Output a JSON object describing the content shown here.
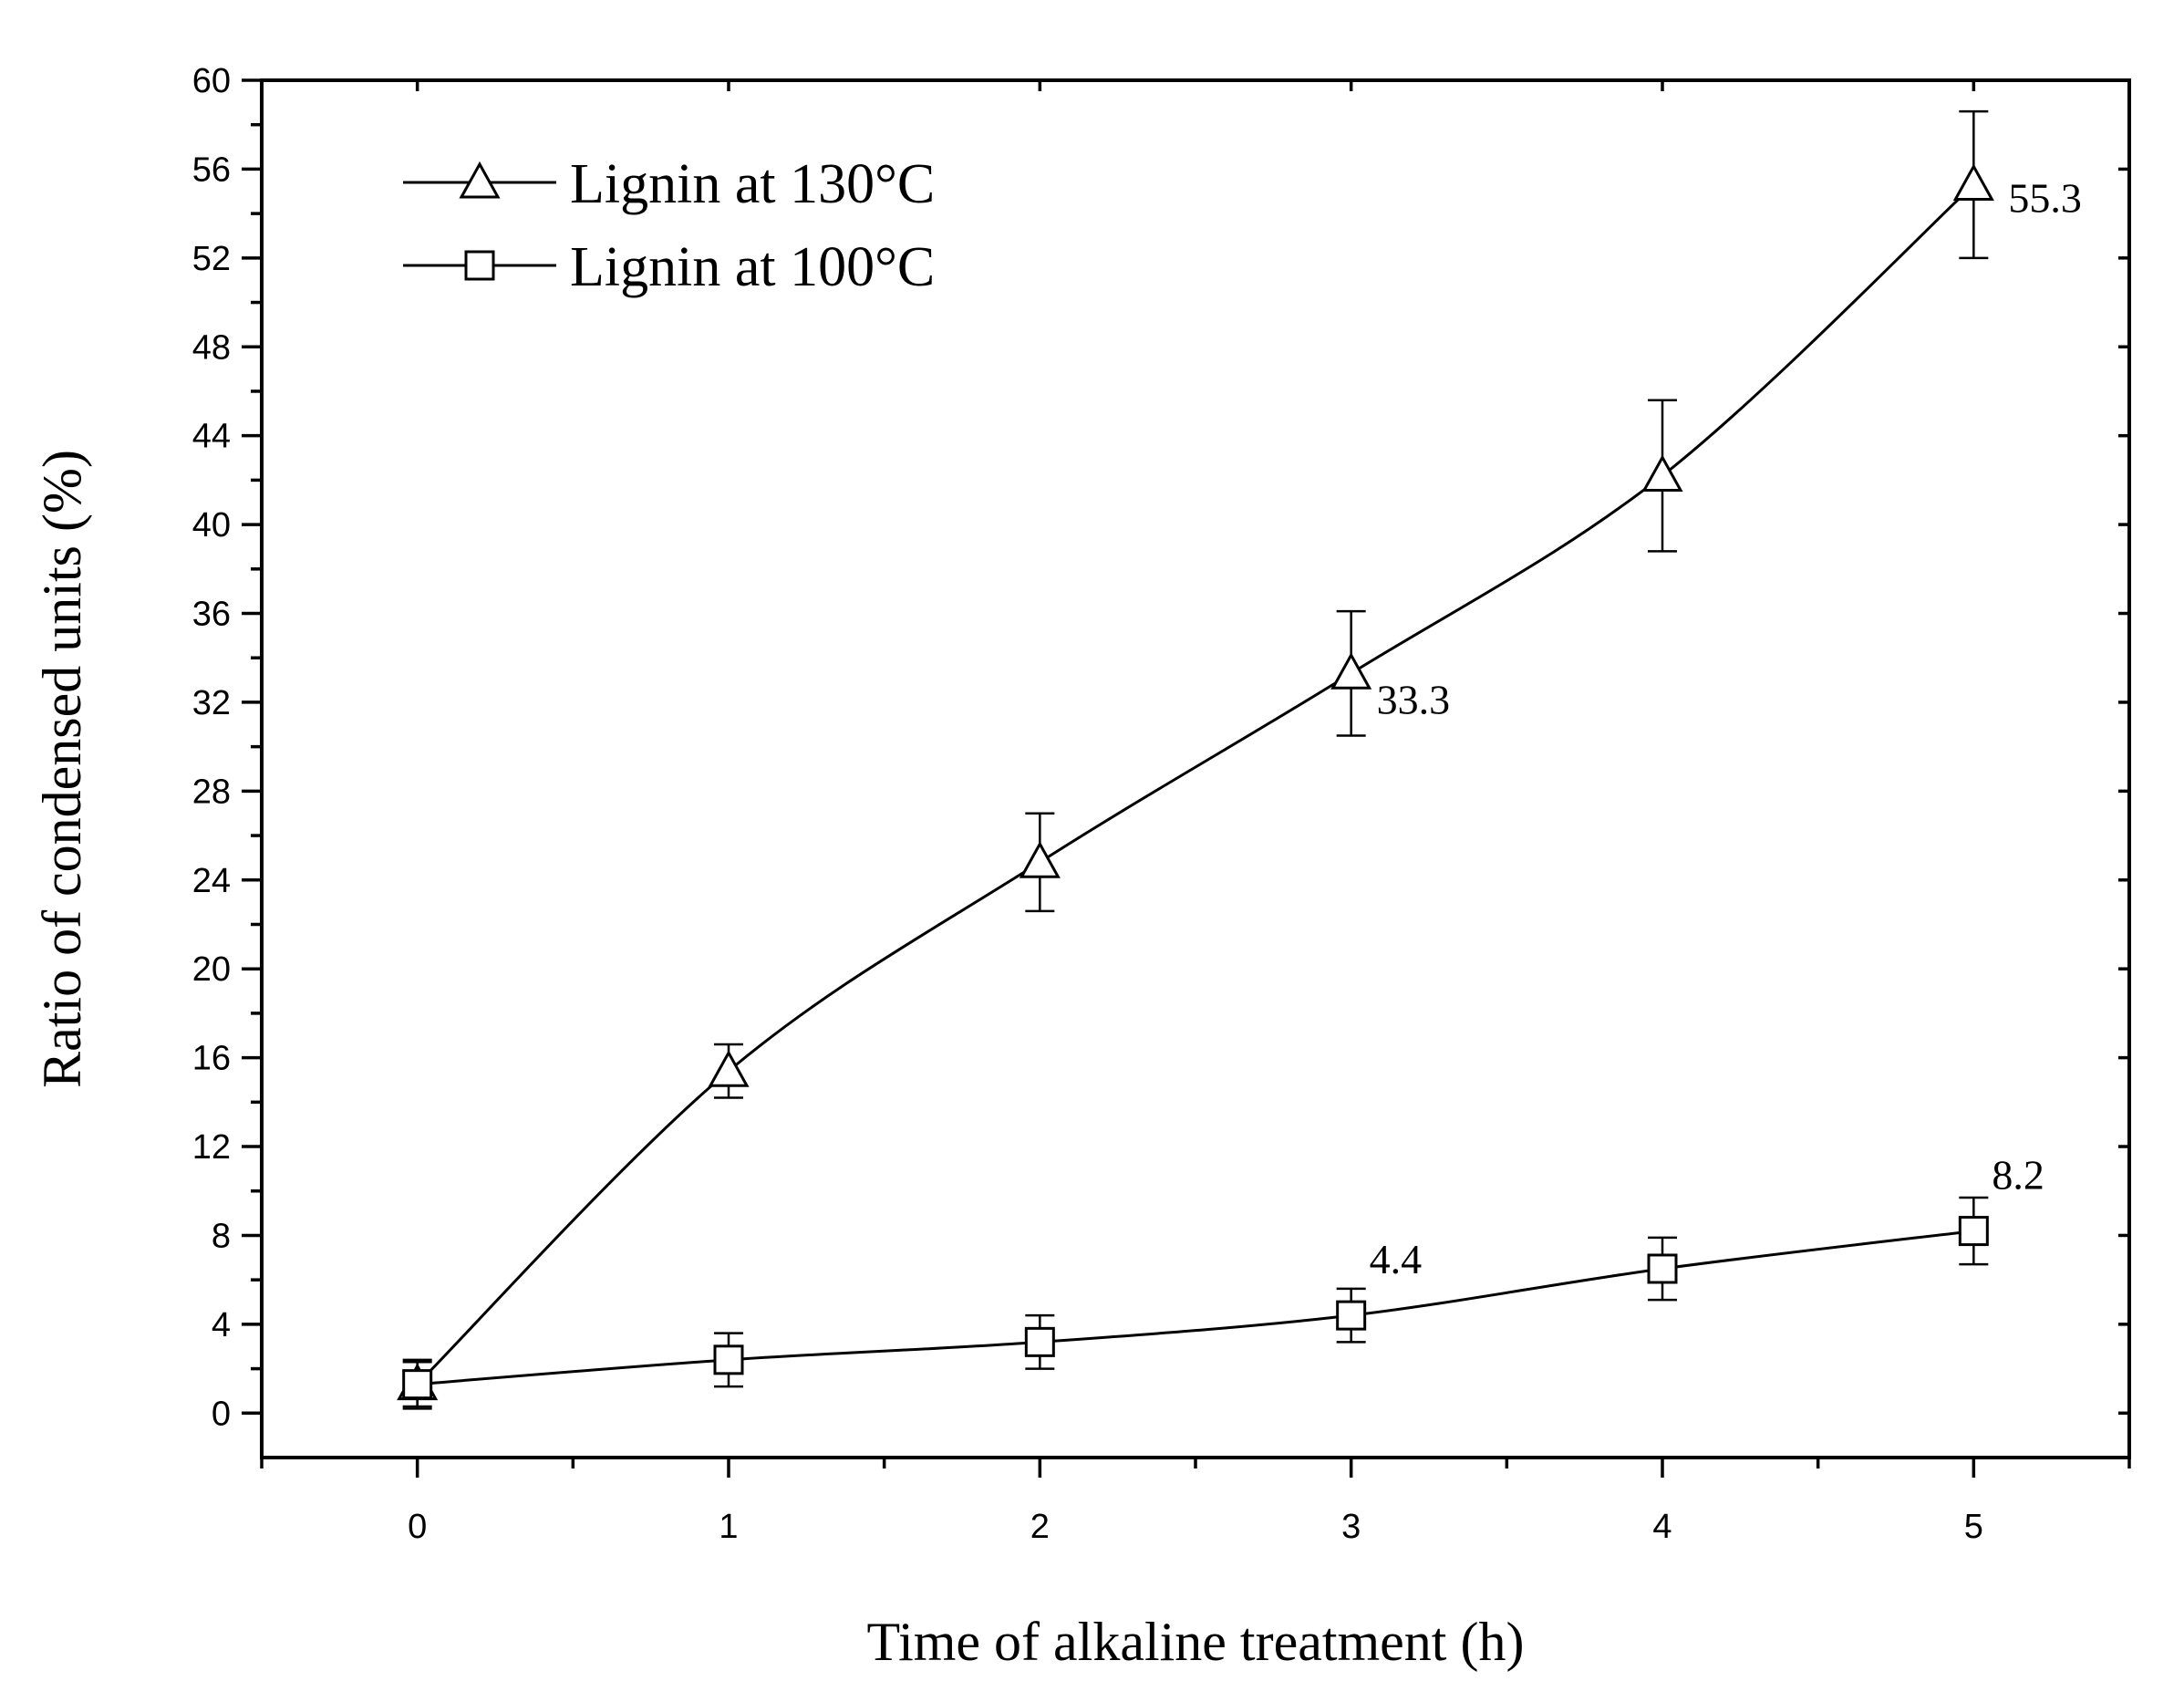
{
  "chart_data": {
    "type": "line",
    "title": "",
    "xlabel": "Time of alkaline treatment (h)",
    "ylabel": "Ratio of condensed units (%)",
    "xlim": [
      -0.5,
      5.5
    ],
    "ylim": [
      -2,
      60
    ],
    "x_ticks": [
      "0",
      "1",
      "2",
      "3",
      "4",
      "5"
    ],
    "y_ticks": [
      "0",
      "4",
      "8",
      "12",
      "16",
      "20",
      "24",
      "28",
      "32",
      "36",
      "40",
      "44",
      "48",
      "52",
      "56",
      "60"
    ],
    "legend_position": "top-left",
    "series": [
      {
        "name": "Lignin at 130°C",
        "marker": "triangle",
        "x": [
          0,
          1,
          2,
          3,
          4,
          5
        ],
        "values": [
          1.3,
          15.4,
          24.8,
          33.3,
          42.2,
          55.3
        ],
        "error": [
          1.0,
          1.2,
          2.2,
          2.8,
          3.4,
          3.3
        ]
      },
      {
        "name": "Lignin at 100°C",
        "marker": "square",
        "x": [
          0,
          1,
          2,
          3,
          4,
          5
        ],
        "values": [
          1.3,
          2.4,
          3.2,
          4.4,
          6.5,
          8.2
        ],
        "error": [
          1.1,
          1.2,
          1.2,
          1.2,
          1.4,
          1.5
        ]
      }
    ],
    "annotations": [
      {
        "series": 0,
        "index": 3,
        "text": "33.3",
        "placement": "right-below"
      },
      {
        "series": 0,
        "index": 5,
        "text": "55.3",
        "placement": "right"
      },
      {
        "series": 1,
        "index": 3,
        "text": "4.4",
        "placement": "above-right"
      },
      {
        "series": 1,
        "index": 5,
        "text": "8.2",
        "placement": "above-right"
      }
    ]
  }
}
